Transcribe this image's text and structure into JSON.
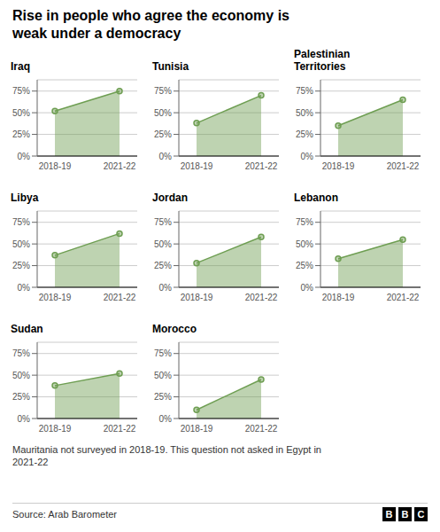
{
  "title": "Rise in people who agree the economy is\nweak under a democracy",
  "subtitle": "Mauritania not surveyed in 2018-19. This question not asked in Egypt in\n2021-22",
  "annotations": [
    "Source: Arab Barometer",
    "BBC"
  ],
  "chart_data": [
    {
      "type": "area",
      "title": "Iraq",
      "categories": [
        "2018-19",
        "2021-22"
      ],
      "values": [
        52,
        75
      ],
      "color": "#6e9e52",
      "ylim": [
        0,
        88
      ],
      "yticks": [
        {
          "value": 0,
          "label": "0%"
        },
        {
          "value": 25,
          "label": "25%"
        },
        {
          "value": 50,
          "label": "50%"
        },
        {
          "value": 75,
          "label": "75%"
        }
      ],
      "grid": true
    },
    {
      "type": "area",
      "title": "Tunisia",
      "categories": [
        "2018-19",
        "2021-22"
      ],
      "values": [
        38,
        70
      ],
      "color": "#6e9e52",
      "ylim": [
        0,
        88
      ],
      "yticks": [
        {
          "value": 0,
          "label": "0%"
        },
        {
          "value": 25,
          "label": "25%"
        },
        {
          "value": 50,
          "label": "50%"
        },
        {
          "value": 75,
          "label": "75%"
        }
      ],
      "grid": true
    },
    {
      "type": "area",
      "title": "Palestinian\nTerritories",
      "categories": [
        "2018-19",
        "2021-22"
      ],
      "values": [
        35,
        65
      ],
      "color": "#6e9e52",
      "ylim": [
        0,
        88
      ],
      "yticks": [
        {
          "value": 0,
          "label": "0%"
        },
        {
          "value": 25,
          "label": "25%"
        },
        {
          "value": 50,
          "label": "50%"
        },
        {
          "value": 75,
          "label": "75%"
        }
      ],
      "grid": true
    },
    {
      "type": "area",
      "title": "Libya",
      "categories": [
        "2018-19",
        "2021-22"
      ],
      "values": [
        37,
        62
      ],
      "color": "#6e9e52",
      "ylim": [
        0,
        88
      ],
      "yticks": [
        {
          "value": 0,
          "label": "0%"
        },
        {
          "value": 25,
          "label": "25%"
        },
        {
          "value": 50,
          "label": "50%"
        },
        {
          "value": 75,
          "label": "75%"
        }
      ],
      "grid": true
    },
    {
      "type": "area",
      "title": "Jordan",
      "categories": [
        "2018-19",
        "2021-22"
      ],
      "values": [
        28,
        58
      ],
      "color": "#6e9e52",
      "ylim": [
        0,
        88
      ],
      "yticks": [
        {
          "value": 0,
          "label": "0%"
        },
        {
          "value": 25,
          "label": "25%"
        },
        {
          "value": 50,
          "label": "50%"
        },
        {
          "value": 75,
          "label": "75%"
        }
      ],
      "grid": true
    },
    {
      "type": "area",
      "title": "Lebanon",
      "categories": [
        "2018-19",
        "2021-22"
      ],
      "values": [
        33,
        55
      ],
      "color": "#6e9e52",
      "ylim": [
        0,
        88
      ],
      "yticks": [
        {
          "value": 0,
          "label": "0%"
        },
        {
          "value": 25,
          "label": "25%"
        },
        {
          "value": 50,
          "label": "50%"
        },
        {
          "value": 75,
          "label": "75%"
        }
      ],
      "grid": true
    },
    {
      "type": "area",
      "title": "Sudan",
      "categories": [
        "2018-19",
        "2021-22"
      ],
      "values": [
        38,
        52
      ],
      "color": "#6e9e52",
      "ylim": [
        0,
        88
      ],
      "yticks": [
        {
          "value": 0,
          "label": "0%"
        },
        {
          "value": 25,
          "label": "25%"
        },
        {
          "value": 50,
          "label": "50%"
        },
        {
          "value": 75,
          "label": "75%"
        }
      ],
      "grid": true
    },
    {
      "type": "area",
      "title": "Morocco",
      "categories": [
        "2018-19",
        "2021-22"
      ],
      "values": [
        10,
        45
      ],
      "color": "#6e9e52",
      "ylim": [
        0,
        88
      ],
      "yticks": [
        {
          "value": 0,
          "label": "0%"
        },
        {
          "value": 25,
          "label": "25%"
        },
        {
          "value": 50,
          "label": "50%"
        },
        {
          "value": 75,
          "label": "75%"
        }
      ],
      "grid": true
    }
  ]
}
